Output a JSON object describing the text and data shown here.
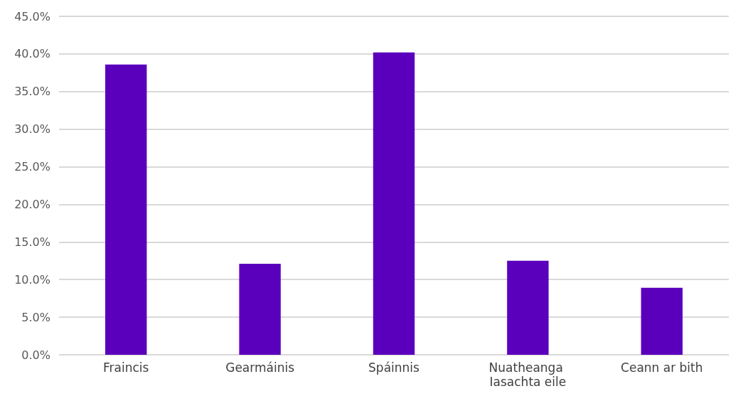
{
  "chart_data": {
    "type": "bar",
    "categories": [
      "Fraincis",
      "Gearmáinis",
      "Spáinnis",
      "Nuatheanga Iasachta eile",
      "Ceann ar bith"
    ],
    "values": [
      38.6,
      12.1,
      40.2,
      12.5,
      8.9
    ],
    "color": "#5a00bd",
    "ylim": [
      0,
      45
    ],
    "yticks": [
      {
        "value": 0,
        "label": "0.0%"
      },
      {
        "value": 5,
        "label": "5.0%"
      },
      {
        "value": 10,
        "label": "10.0%"
      },
      {
        "value": 15,
        "label": "15.0%"
      },
      {
        "value": 20,
        "label": "20.0%"
      },
      {
        "value": 25,
        "label": "25.0%"
      },
      {
        "value": 30,
        "label": "30.0%"
      },
      {
        "value": 35,
        "label": "35.0%"
      },
      {
        "value": 40,
        "label": "40.0%"
      },
      {
        "value": 45,
        "label": "45.0%"
      }
    ],
    "grid": "y"
  }
}
